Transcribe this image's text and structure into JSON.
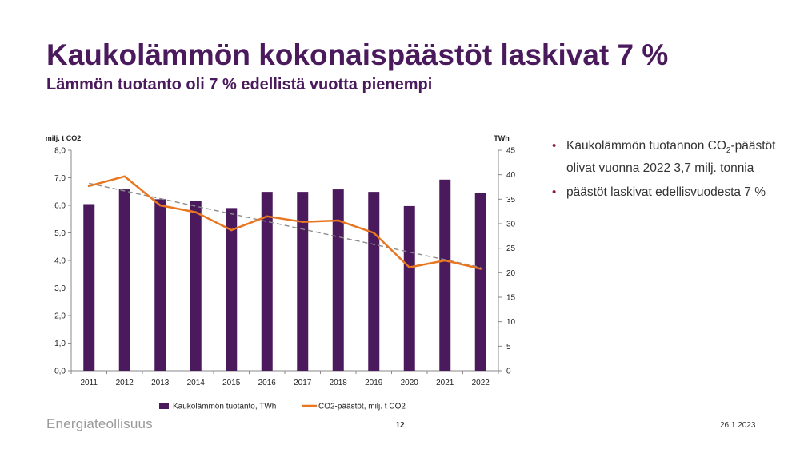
{
  "slide": {
    "title": "Kaukolämmön kokonaispäästöt laskivat 7 %",
    "subtitle": "Lämmön tuotanto oli 7 % edellistä vuotta pienempi"
  },
  "bullets": {
    "b1_pre": "Kaukolämmön tuotannon CO",
    "b1_sub": "2",
    "b1_post": "-päästöt olivat vuonna 2022 3,7 milj. tonnia",
    "b2": "päästöt laskivat edellisvuodesta 7 %"
  },
  "footer": {
    "logo": "Energiateollisuus",
    "page": "12",
    "date": "26.1.2023"
  },
  "colors": {
    "title": "#4b1a5c",
    "bar": "#4b1a5c",
    "line": "#e87722",
    "trend": "#8c8c8c",
    "bullet": "#8b1a3a"
  },
  "chart_data": {
    "type": "bar",
    "categories": [
      "2011",
      "2012",
      "2013",
      "2014",
      "2015",
      "2016",
      "2017",
      "2018",
      "2019",
      "2020",
      "2021",
      "2022"
    ],
    "series": [
      {
        "name": "Kaukolämmön tuotanto, TWh",
        "type": "bar",
        "axis": "right",
        "values": [
          34.0,
          37.0,
          35.0,
          34.7,
          33.2,
          36.5,
          36.5,
          37.0,
          36.5,
          33.6,
          39.0,
          36.3
        ]
      },
      {
        "name": "CO2-päästöt, milj. t CO2",
        "type": "line",
        "axis": "left",
        "values": [
          6.7,
          7.05,
          6.0,
          5.75,
          5.1,
          5.6,
          5.4,
          5.45,
          5.0,
          3.75,
          4.0,
          3.7
        ]
      }
    ],
    "trendline": {
      "axis": "left",
      "start": 6.8,
      "end": 3.75
    },
    "y_left": {
      "label": "milj. t CO2",
      "min": 0,
      "max": 8,
      "ticks": [
        "0,0",
        "1,0",
        "2,0",
        "3,0",
        "4,0",
        "5,0",
        "6,0",
        "7,0",
        "8,0"
      ]
    },
    "y_right": {
      "label": "TWh",
      "min": 0,
      "max": 45,
      "ticks": [
        "0",
        "5",
        "10",
        "15",
        "20",
        "25",
        "30",
        "35",
        "40",
        "45"
      ]
    },
    "legend_position": "bottom"
  }
}
